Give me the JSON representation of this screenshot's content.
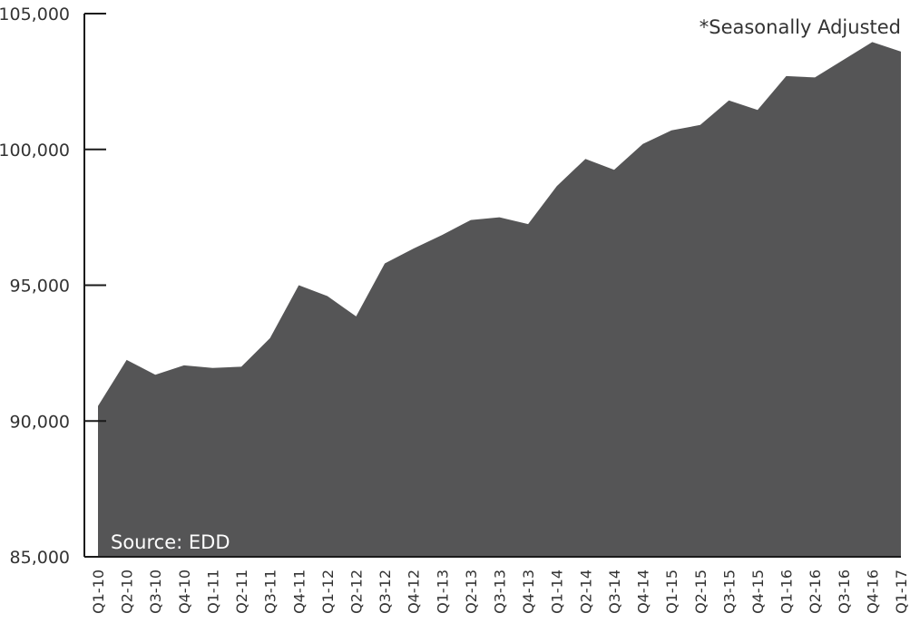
{
  "chart_data": {
    "type": "area",
    "note": "*Seasonally Adjusted",
    "source": "Source: EDD",
    "ylim": [
      85000,
      105000
    ],
    "yticks": [
      85000,
      90000,
      95000,
      100000,
      105000
    ],
    "ytick_labels": [
      "85,000",
      "90,000",
      "95,000",
      "100,000",
      "105,000"
    ],
    "categories": [
      "Q1-10",
      "Q2-10",
      "Q3-10",
      "Q4-10",
      "Q1-11",
      "Q2-11",
      "Q3-11",
      "Q4-11",
      "Q1-12",
      "Q2-12",
      "Q3-12",
      "Q4-12",
      "Q1-13",
      "Q2-13",
      "Q3-13",
      "Q4-13",
      "Q1-14",
      "Q2-14",
      "Q3-14",
      "Q4-14",
      "Q1-15",
      "Q2-15",
      "Q3-15",
      "Q4-15",
      "Q1-16",
      "Q2-16",
      "Q3-16",
      "Q4-16",
      "Q1-17"
    ],
    "series": [
      {
        "values": [
          90550,
          92250,
          91700,
          92050,
          91950,
          92000,
          93050,
          95000,
          94600,
          93850,
          95800,
          96350,
          96850,
          97400,
          97500,
          97250,
          98650,
          99650,
          99250,
          100200,
          100700,
          100900,
          101800,
          101450,
          102700,
          102650,
          103300,
          103950,
          103600
        ],
        "color": "#555556"
      }
    ],
    "axis_color": "#1a1a1a"
  }
}
